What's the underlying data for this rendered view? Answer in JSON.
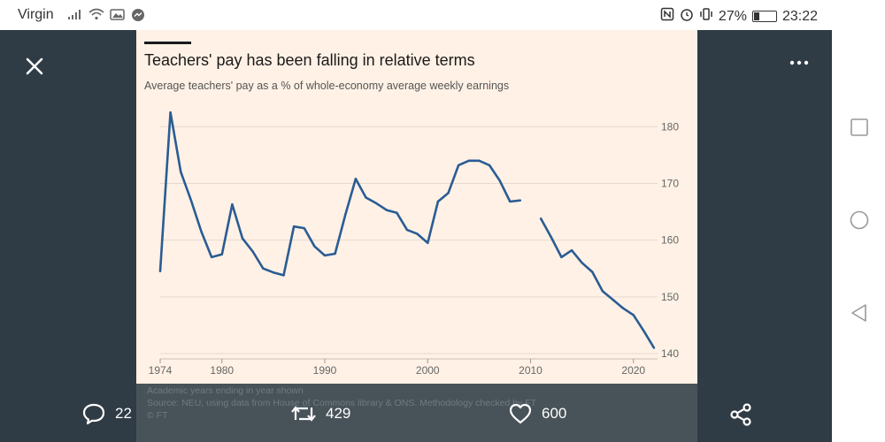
{
  "status_bar": {
    "carrier": "Virgin",
    "battery": "27%",
    "battery_level": 0.27,
    "time": "23:22"
  },
  "icons": {
    "close": "close-icon",
    "more": "more-options-icon",
    "comment": "comment-icon",
    "retweet": "retweet-icon",
    "like": "heart-icon",
    "share": "share-icon",
    "nav_recents": "square-recents-icon",
    "nav_home": "circle-home-icon",
    "nav_back": "triangle-back-icon"
  },
  "chart_header": {
    "title": "Teachers' pay has been falling in relative terms",
    "subtitle": "Average teachers' pay as a % of whole-economy average weekly earnings"
  },
  "footnotes": {
    "line1": "Academic years ending in year shown",
    "line2": "Source: NEU, using data from House of Commons library & ONS. Methodology checked by FT",
    "line3": "© FT"
  },
  "actions": {
    "comments": "22",
    "retweets": "429",
    "likes": "600"
  },
  "colors": {
    "line": "#2a5c94",
    "background": "#fff1e5",
    "viewer": "#2f3b45"
  },
  "chart_data": {
    "type": "line",
    "title": "Teachers' pay has been falling in relative terms",
    "subtitle": "Average teachers' pay as a % of whole-economy average weekly earnings",
    "xlabel": "",
    "ylabel": "",
    "xlim": [
      1974,
      2022
    ],
    "ylim": [
      140,
      183
    ],
    "x_ticks": [
      1974,
      1980,
      1990,
      2000,
      2010,
      2020
    ],
    "y_ticks": [
      140,
      150,
      160,
      170,
      180
    ],
    "grid": true,
    "y_axis_position": "right",
    "series": [
      {
        "values": [
          {
            "x": 1974,
            "y": 154.5
          },
          {
            "x": 1975,
            "y": 182.5
          },
          {
            "x": 1976,
            "y": 172
          },
          {
            "x": 1977,
            "y": 167
          },
          {
            "x": 1978,
            "y": 161.5
          },
          {
            "x": 1979,
            "y": 157
          },
          {
            "x": 1980,
            "y": 157.5
          },
          {
            "x": 1981,
            "y": 166.3
          },
          {
            "x": 1982,
            "y": 160.3
          },
          {
            "x": 1983,
            "y": 158
          },
          {
            "x": 1984,
            "y": 155
          },
          {
            "x": 1985,
            "y": 154.3
          },
          {
            "x": 1986,
            "y": 153.8
          },
          {
            "x": 1987,
            "y": 162.4
          },
          {
            "x": 1988,
            "y": 162.1
          },
          {
            "x": 1989,
            "y": 158.9
          },
          {
            "x": 1990,
            "y": 157.3
          },
          {
            "x": 1991,
            "y": 157.6
          },
          {
            "x": 1992,
            "y": 164.5
          },
          {
            "x": 1993,
            "y": 170.8
          },
          {
            "x": 1994,
            "y": 167.5
          },
          {
            "x": 1995,
            "y": 166.5
          },
          {
            "x": 1996,
            "y": 165.3
          },
          {
            "x": 1997,
            "y": 164.8
          },
          {
            "x": 1998,
            "y": 161.8
          },
          {
            "x": 1999,
            "y": 161.1
          },
          {
            "x": 2000,
            "y": 159.5
          },
          {
            "x": 2001,
            "y": 166.8
          },
          {
            "x": 2002,
            "y": 168.3
          },
          {
            "x": 2003,
            "y": 173.2
          },
          {
            "x": 2004,
            "y": 174
          },
          {
            "x": 2005,
            "y": 174
          },
          {
            "x": 2006,
            "y": 173.2
          },
          {
            "x": 2007,
            "y": 170.5
          },
          {
            "x": 2008,
            "y": 166.8
          },
          {
            "x": 2009,
            "y": 167
          },
          {
            "x": 2010,
            "y": null
          },
          {
            "x": 2011,
            "y": 163.8
          },
          {
            "x": 2012,
            "y": 160.5
          },
          {
            "x": 2013,
            "y": 157
          },
          {
            "x": 2014,
            "y": 158.2
          },
          {
            "x": 2015,
            "y": 156
          },
          {
            "x": 2016,
            "y": 154.4
          },
          {
            "x": 2017,
            "y": 151
          },
          {
            "x": 2018,
            "y": 149.5
          },
          {
            "x": 2019,
            "y": 148
          },
          {
            "x": 2020,
            "y": 146.8
          },
          {
            "x": 2021,
            "y": 144
          },
          {
            "x": 2022,
            "y": 141
          }
        ]
      }
    ]
  }
}
